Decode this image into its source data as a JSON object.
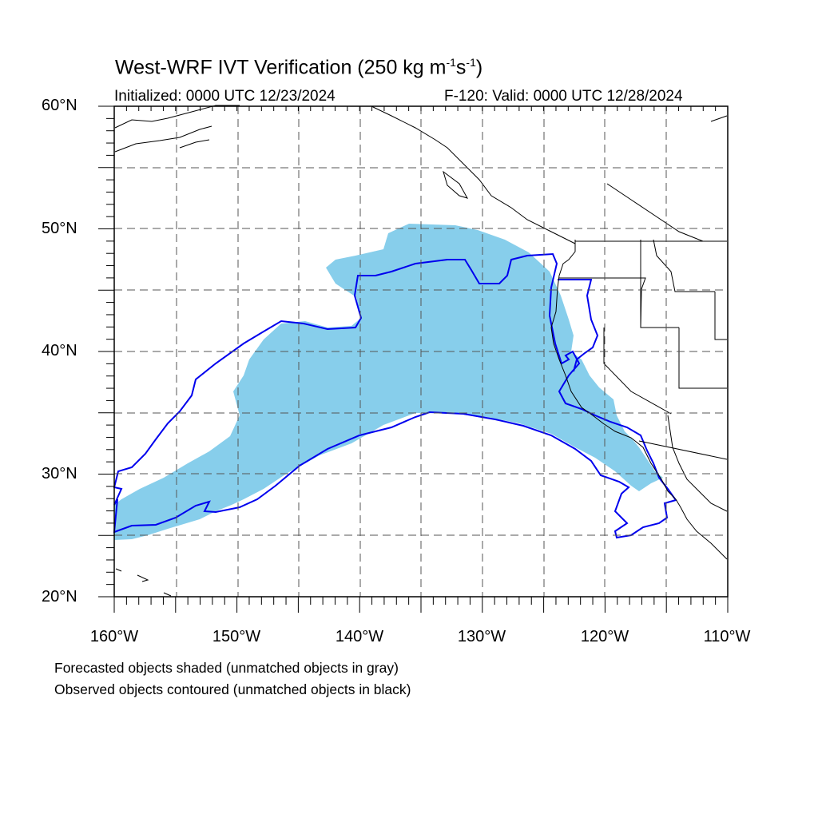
{
  "title": {
    "main": "West-WRF IVT Verification (250 kg m",
    "sup1": "-1",
    "mid": "s",
    "sup2": "-1",
    "end": ")"
  },
  "subtitle_left": "Initialized: 0000 UTC 12/23/2024",
  "subtitle_right": "F-120: Valid: 0000 UTC 12/28/2024",
  "lat_labels": [
    "60°N",
    "50°N",
    "40°N",
    "30°N",
    "20°N"
  ],
  "lon_labels": [
    "160°W",
    "150°W",
    "140°W",
    "130°W",
    "120°W",
    "110°W"
  ],
  "notes": [
    "Forecasted objects shaded (unmatched objects in gray)",
    "Observed objects contoured (unmatched objects in black)"
  ],
  "map": {
    "lon_range": [
      -160,
      -110
    ],
    "lat_range": [
      20,
      60
    ],
    "grid_lon_step": 5,
    "grid_lat_step": 5,
    "forecast_fill_color": "#87ceeb",
    "observed_contour_color": "#0000ee",
    "coastline_color": "#000000"
  }
}
